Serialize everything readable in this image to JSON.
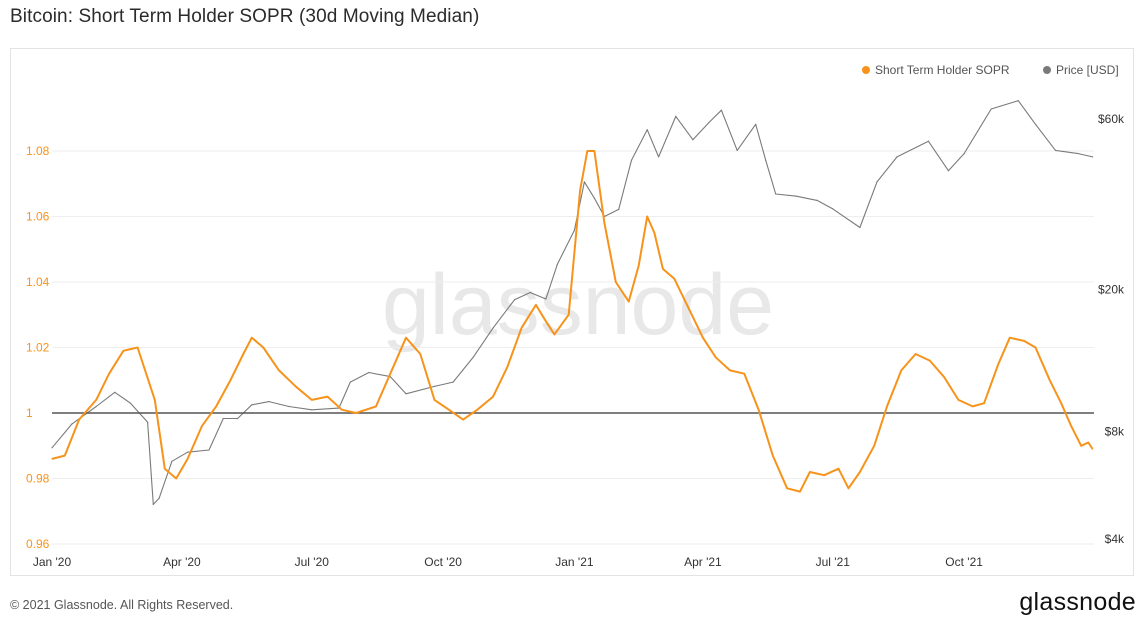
{
  "header": {
    "title": "Bitcoin: Short Term Holder SOPR (30d Moving Median)"
  },
  "footer": {
    "copyright": "© 2021 Glassnode. All Rights Reserved.",
    "brand": "glassnode"
  },
  "watermark": "glassnode",
  "colors": {
    "sopr": "#f7931a",
    "price": "#7a7a7a",
    "baseline": "#555555",
    "grid": "#eeeeee"
  },
  "chart_data": {
    "type": "line",
    "title": "Bitcoin: Short Term Holder SOPR (30d Moving Median)",
    "legend": {
      "placement": "top-right",
      "entries": [
        "Short Term Holder SOPR",
        "Price [USD]"
      ]
    },
    "grid": true,
    "x_range": [
      "2020-01-01",
      "2021-12-31"
    ],
    "x_ticks": [
      "Jan '20",
      "Apr '20",
      "Jul '20",
      "Oct '20",
      "Jan '21",
      "Apr '21",
      "Jul '21",
      "Oct '21"
    ],
    "y_left": {
      "ticks": [
        "0.96",
        "0.98",
        "1",
        "1.02",
        "1.04",
        "1.06",
        "1.08"
      ],
      "range": [
        0.96,
        1.09
      ]
    },
    "y_right": {
      "scale": "log",
      "ticks": [
        "$4k",
        "$8k",
        "$20k",
        "$60k"
      ],
      "range": [
        4000,
        75000
      ]
    },
    "reference_line": {
      "y": 1
    },
    "series": [
      {
        "name": "Short Term Holder SOPR",
        "axis": "left",
        "points": [
          [
            "2020-01-01",
            0.986
          ],
          [
            "2020-01-10",
            0.987
          ],
          [
            "2020-01-20",
            0.998
          ],
          [
            "2020-02-01",
            1.004
          ],
          [
            "2020-02-10",
            1.012
          ],
          [
            "2020-02-20",
            1.019
          ],
          [
            "2020-03-01",
            1.02
          ],
          [
            "2020-03-07",
            1.012
          ],
          [
            "2020-03-13",
            1.004
          ],
          [
            "2020-03-20",
            0.983
          ],
          [
            "2020-03-28",
            0.98
          ],
          [
            "2020-04-05",
            0.986
          ],
          [
            "2020-04-15",
            0.996
          ],
          [
            "2020-04-25",
            1.002
          ],
          [
            "2020-05-05",
            1.01
          ],
          [
            "2020-05-14",
            1.018
          ],
          [
            "2020-05-20",
            1.023
          ],
          [
            "2020-05-28",
            1.02
          ],
          [
            "2020-06-08",
            1.013
          ],
          [
            "2020-06-20",
            1.008
          ],
          [
            "2020-07-01",
            1.004
          ],
          [
            "2020-07-12",
            1.005
          ],
          [
            "2020-07-22",
            1.001
          ],
          [
            "2020-08-01",
            1.0
          ],
          [
            "2020-08-15",
            1.002
          ],
          [
            "2020-08-25",
            1.012
          ],
          [
            "2020-09-05",
            1.023
          ],
          [
            "2020-09-15",
            1.018
          ],
          [
            "2020-09-25",
            1.004
          ],
          [
            "2020-10-05",
            1.001
          ],
          [
            "2020-10-15",
            0.998
          ],
          [
            "2020-10-25",
            1.001
          ],
          [
            "2020-11-05",
            1.005
          ],
          [
            "2020-11-15",
            1.014
          ],
          [
            "2020-11-25",
            1.026
          ],
          [
            "2020-12-05",
            1.033
          ],
          [
            "2020-12-12",
            1.028
          ],
          [
            "2020-12-18",
            1.024
          ],
          [
            "2020-12-28",
            1.03
          ],
          [
            "2021-01-05",
            1.068
          ],
          [
            "2021-01-10",
            1.08
          ],
          [
            "2021-01-15",
            1.08
          ],
          [
            "2021-01-22",
            1.058
          ],
          [
            "2021-01-30",
            1.04
          ],
          [
            "2021-02-08",
            1.034
          ],
          [
            "2021-02-15",
            1.045
          ],
          [
            "2021-02-21",
            1.06
          ],
          [
            "2021-02-26",
            1.055
          ],
          [
            "2021-03-04",
            1.044
          ],
          [
            "2021-03-12",
            1.041
          ],
          [
            "2021-03-22",
            1.032
          ],
          [
            "2021-04-01",
            1.023
          ],
          [
            "2021-04-10",
            1.017
          ],
          [
            "2021-04-20",
            1.013
          ],
          [
            "2021-04-30",
            1.012
          ],
          [
            "2021-05-10",
            1.001
          ],
          [
            "2021-05-20",
            0.987
          ],
          [
            "2021-05-30",
            0.977
          ],
          [
            "2021-06-08",
            0.976
          ],
          [
            "2021-06-15",
            0.982
          ],
          [
            "2021-06-25",
            0.981
          ],
          [
            "2021-07-05",
            0.983
          ],
          [
            "2021-07-12",
            0.977
          ],
          [
            "2021-07-20",
            0.982
          ],
          [
            "2021-07-30",
            0.99
          ],
          [
            "2021-08-08",
            1.002
          ],
          [
            "2021-08-18",
            1.013
          ],
          [
            "2021-08-28",
            1.018
          ],
          [
            "2021-09-07",
            1.016
          ],
          [
            "2021-09-17",
            1.011
          ],
          [
            "2021-09-27",
            1.004
          ],
          [
            "2021-10-07",
            1.002
          ],
          [
            "2021-10-15",
            1.003
          ],
          [
            "2021-10-25",
            1.015
          ],
          [
            "2021-11-02",
            1.023
          ],
          [
            "2021-11-12",
            1.022
          ],
          [
            "2021-11-20",
            1.02
          ],
          [
            "2021-11-30",
            1.01
          ],
          [
            "2021-12-08",
            1.003
          ],
          [
            "2021-12-15",
            0.996
          ],
          [
            "2021-12-22",
            0.99
          ],
          [
            "2021-12-27",
            0.991
          ],
          [
            "2021-12-30",
            0.989
          ]
        ]
      },
      {
        "name": "Price [USD]",
        "axis": "right",
        "points": [
          [
            "2020-01-01",
            7200
          ],
          [
            "2020-01-15",
            8400
          ],
          [
            "2020-02-01",
            9400
          ],
          [
            "2020-02-14",
            10300
          ],
          [
            "2020-02-25",
            9600
          ],
          [
            "2020-03-08",
            8500
          ],
          [
            "2020-03-12",
            5000
          ],
          [
            "2020-03-16",
            5200
          ],
          [
            "2020-03-25",
            6600
          ],
          [
            "2020-04-05",
            7000
          ],
          [
            "2020-04-20",
            7100
          ],
          [
            "2020-04-30",
            8700
          ],
          [
            "2020-05-10",
            8700
          ],
          [
            "2020-05-20",
            9500
          ],
          [
            "2020-06-01",
            9700
          ],
          [
            "2020-06-15",
            9400
          ],
          [
            "2020-07-01",
            9200
          ],
          [
            "2020-07-20",
            9300
          ],
          [
            "2020-07-28",
            11000
          ],
          [
            "2020-08-10",
            11700
          ],
          [
            "2020-08-25",
            11400
          ],
          [
            "2020-09-05",
            10200
          ],
          [
            "2020-09-25",
            10700
          ],
          [
            "2020-10-08",
            11000
          ],
          [
            "2020-10-22",
            12900
          ],
          [
            "2020-11-05",
            15600
          ],
          [
            "2020-11-20",
            18700
          ],
          [
            "2020-12-01",
            19600
          ],
          [
            "2020-12-12",
            18800
          ],
          [
            "2020-12-20",
            23500
          ],
          [
            "2021-01-01",
            29300
          ],
          [
            "2021-01-08",
            40000
          ],
          [
            "2021-01-15",
            36000
          ],
          [
            "2021-01-22",
            32000
          ],
          [
            "2021-02-01",
            33500
          ],
          [
            "2021-02-10",
            46000
          ],
          [
            "2021-02-21",
            56000
          ],
          [
            "2021-03-01",
            47000
          ],
          [
            "2021-03-13",
            61000
          ],
          [
            "2021-03-25",
            52500
          ],
          [
            "2021-04-05",
            58500
          ],
          [
            "2021-04-14",
            63500
          ],
          [
            "2021-04-25",
            49000
          ],
          [
            "2021-05-08",
            58000
          ],
          [
            "2021-05-15",
            46000
          ],
          [
            "2021-05-22",
            37000
          ],
          [
            "2021-06-05",
            36500
          ],
          [
            "2021-06-20",
            35500
          ],
          [
            "2021-07-01",
            33600
          ],
          [
            "2021-07-20",
            29800
          ],
          [
            "2021-08-01",
            40000
          ],
          [
            "2021-08-15",
            47000
          ],
          [
            "2021-09-06",
            52000
          ],
          [
            "2021-09-20",
            43000
          ],
          [
            "2021-10-01",
            48000
          ],
          [
            "2021-10-20",
            64000
          ],
          [
            "2021-11-08",
            67500
          ],
          [
            "2021-11-20",
            58000
          ],
          [
            "2021-12-04",
            49000
          ],
          [
            "2021-12-20",
            48000
          ],
          [
            "2021-12-30",
            47000
          ]
        ]
      }
    ]
  }
}
